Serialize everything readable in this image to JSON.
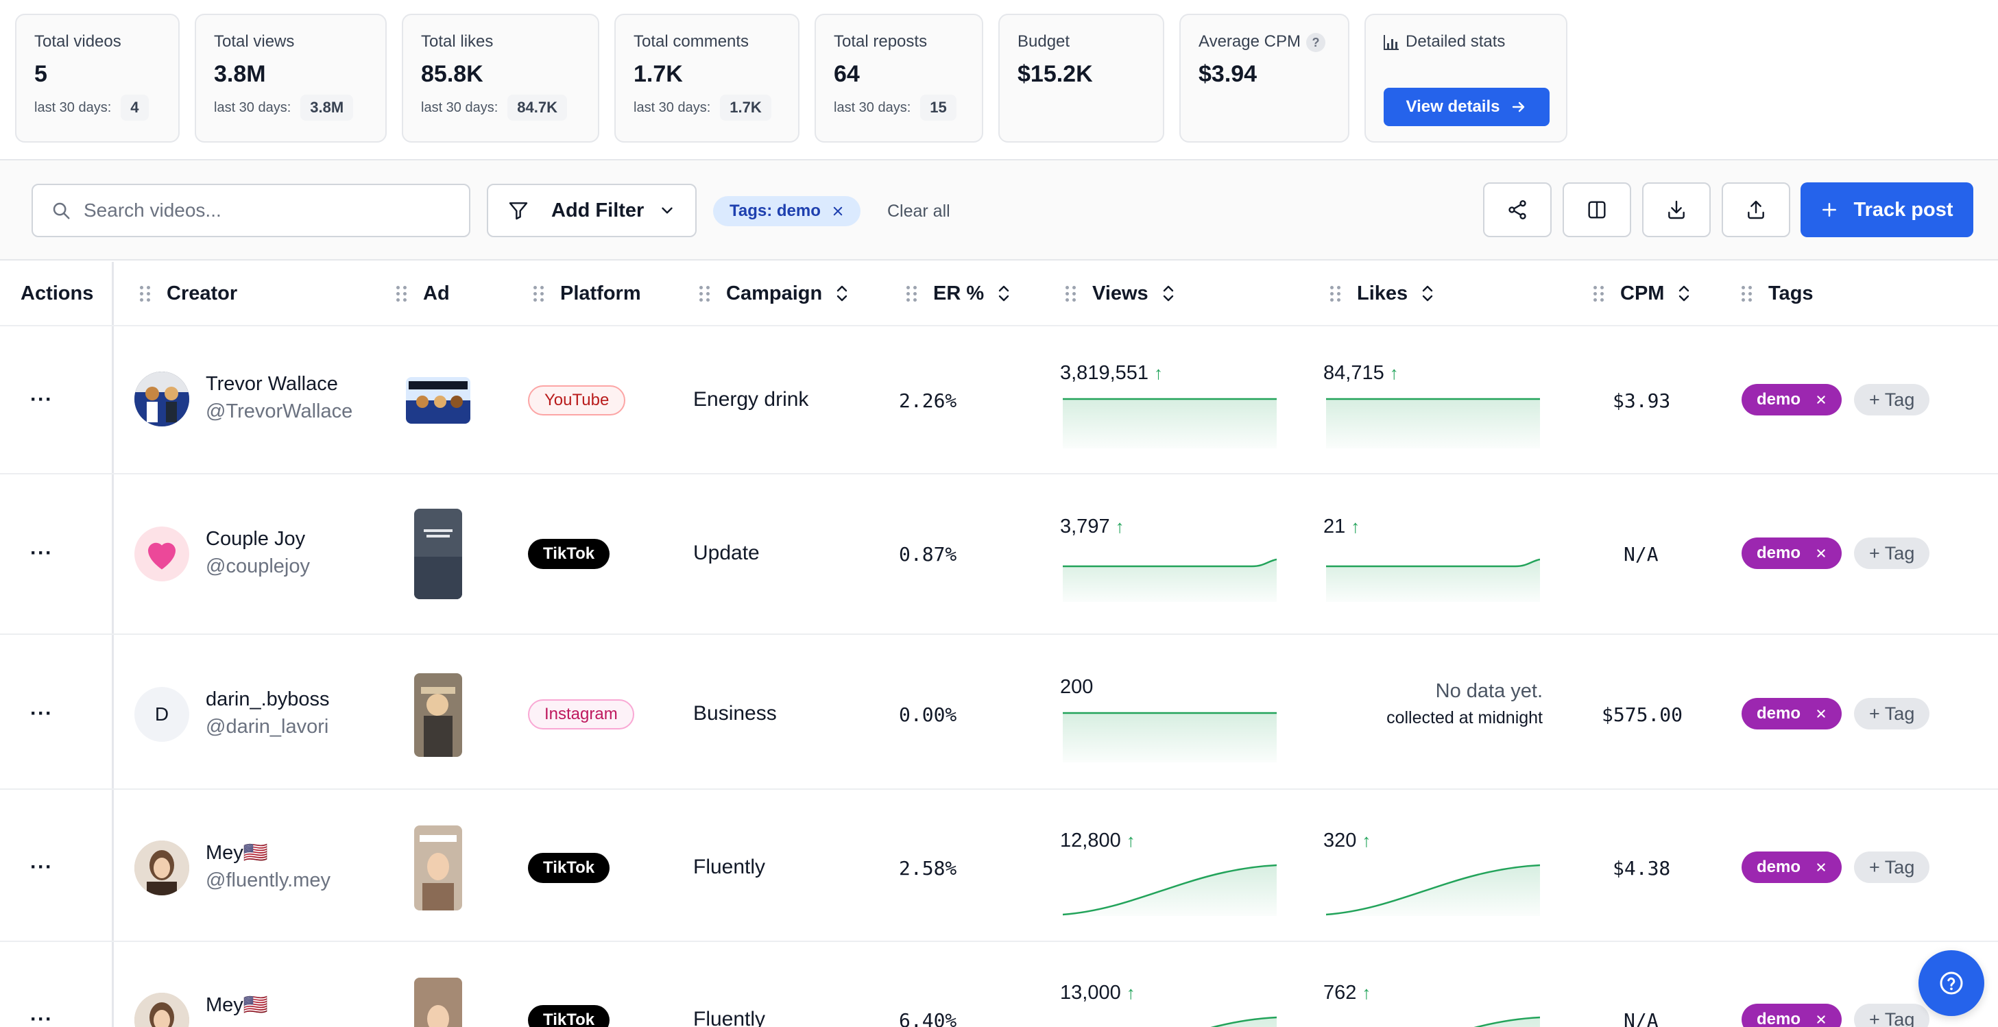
{
  "stats": [
    {
      "label": "Total videos",
      "value": "5",
      "sub_label": "last 30 days:",
      "sub_value": "4"
    },
    {
      "label": "Total views",
      "value": "3.8M",
      "sub_label": "last 30 days:",
      "sub_value": "3.8M"
    },
    {
      "label": "Total likes",
      "value": "85.8K",
      "sub_label": "last 30 days:",
      "sub_value": "84.7K"
    },
    {
      "label": "Total comments",
      "value": "1.7K",
      "sub_label": "last 30 days:",
      "sub_value": "1.7K"
    },
    {
      "label": "Total reposts",
      "value": "64",
      "sub_label": "last 30 days:",
      "sub_value": "15"
    },
    {
      "label": "Budget",
      "value": "$15.2K"
    },
    {
      "label": "Average CPM",
      "value": "$3.94",
      "help": "?"
    },
    {
      "label": "Detailed stats",
      "button": "View details"
    }
  ],
  "toolbar": {
    "search_placeholder": "Search videos...",
    "add_filter": "Add Filter",
    "active_filter": "Tags: demo",
    "clear_all": "Clear all",
    "track_post": "Track post"
  },
  "columns": {
    "actions": "Actions",
    "creator": "Creator",
    "ad": "Ad",
    "platform": "Platform",
    "campaign": "Campaign",
    "er": "ER %",
    "views": "Views",
    "likes": "Likes",
    "cpm": "CPM",
    "tags": "Tags"
  },
  "rows": [
    {
      "actions": "···",
      "name": "Trevor Wallace",
      "handle": "@TrevorWallace",
      "platform": "YouTube",
      "campaign": "Energy drink",
      "er": "2.26%",
      "views": "3,819,551",
      "views_trend": "flat",
      "likes": "84,715",
      "likes_trend": "flat",
      "cpm": "$3.93",
      "tag": "demo",
      "add_tag": "+ Tag"
    },
    {
      "actions": "···",
      "name": "Couple Joy",
      "handle": "@couplejoy",
      "platform": "TikTok",
      "campaign": "Update",
      "er": "0.87%",
      "views": "3,797",
      "views_trend": "tail-up",
      "likes": "21",
      "likes_trend": "tail-up",
      "cpm": "N/A",
      "tag": "demo",
      "add_tag": "+ Tag"
    },
    {
      "actions": "···",
      "initial": "D",
      "name": "darin_.byboss",
      "handle": "@darin_lavori",
      "platform": "Instagram",
      "campaign": "Business",
      "er": "0.00%",
      "views": "200",
      "views_trend": "flat",
      "likes_nodata": "No data yet.",
      "likes_nodata_sub": "collected at midnight",
      "cpm": "$575.00",
      "tag": "demo",
      "add_tag": "+ Tag"
    },
    {
      "actions": "···",
      "name": "Mey🇺🇸",
      "handle": "@fluently.mey",
      "platform": "TikTok",
      "campaign": "Fluently",
      "er": "2.58%",
      "views": "12,800",
      "views_trend": "s-curve",
      "likes": "320",
      "likes_trend": "s-curve",
      "cpm": "$4.38",
      "tag": "demo",
      "add_tag": "+ Tag"
    },
    {
      "actions": "···",
      "name": "Mey🇺🇸",
      "platform": "TikTok",
      "campaign": "Fluently",
      "er": "6.40%",
      "views": "13,000",
      "views_trend": "s-curve",
      "likes": "762",
      "likes_trend": "s-curve",
      "cpm": "N/A",
      "tag": "demo",
      "add_tag": "+ Tag"
    }
  ],
  "colors": {
    "accent": "#2563eb",
    "tag": "#9c27b0",
    "spark": "#22a35a",
    "up_arrow": "#22a35a"
  }
}
